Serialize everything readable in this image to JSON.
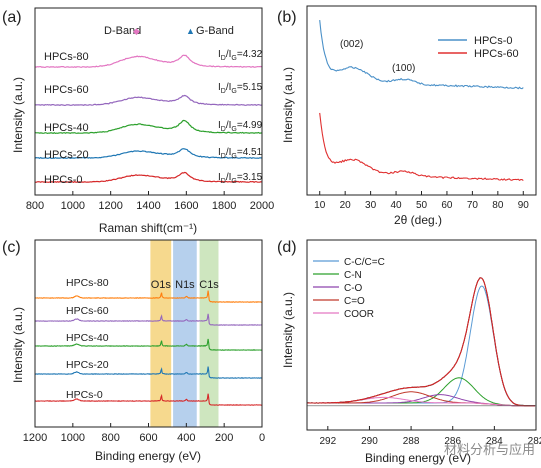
{
  "watermark": "材料分析与应用",
  "chart_data": [
    {
      "panel_label": "(a)",
      "type": "line",
      "xlabel": "Raman shift(cm⁻¹)",
      "ylabel": "Intensity (a.u.)",
      "xlim": [
        800,
        2000
      ],
      "xticks": [
        "800",
        "1000",
        "1200",
        "1400",
        "1600",
        "1800",
        "2000"
      ],
      "annotations": [
        {
          "text": "D-Band",
          "marker": "◆",
          "x": 1340
        },
        {
          "text": "G-Band",
          "marker": "▲",
          "x": 1590
        }
      ],
      "series": [
        {
          "name": "HPCs-0",
          "color": "#d62728",
          "ratio_label": "I",
          "sub": "D",
          "mid": "/I",
          "sub2": "G",
          "value": "=3.15",
          "d_height": 0.55,
          "g_height": 0.75
        },
        {
          "name": "HPCs-20",
          "color": "#1f77b4",
          "ratio_label": "I",
          "sub": "D",
          "mid": "/I",
          "sub2": "G",
          "value": "=4.51",
          "d_height": 0.55,
          "g_height": 0.75
        },
        {
          "name": "HPCs-40",
          "color": "#2ca02c",
          "ratio_label": "I",
          "sub": "D",
          "mid": "/I",
          "sub2": "G",
          "value": "=4.99",
          "d_height": 0.7,
          "g_height": 1.0
        },
        {
          "name": "HPCs-60",
          "color": "#9467bd",
          "ratio_label": "I",
          "sub": "D",
          "mid": "/I",
          "sub2": "G",
          "value": "=5.15",
          "d_height": 0.6,
          "g_height": 0.75
        },
        {
          "name": "HPCs-80",
          "color": "#e377c2",
          "ratio_label": "I",
          "sub": "D",
          "mid": "/I",
          "sub2": "G",
          "value": "=4.32",
          "d_height": 0.85,
          "g_height": 0.95
        }
      ]
    },
    {
      "panel_label": "(b)",
      "type": "line",
      "xlabel": "2θ (deg.)",
      "ylabel": "Intensity (a.u.)",
      "xlim": [
        5,
        95
      ],
      "xticks": [
        "10",
        "20",
        "30",
        "40",
        "50",
        "60",
        "70",
        "80",
        "90"
      ],
      "legend_position": "top-right",
      "annotations": [
        {
          "text": "(002)",
          "x": 23
        },
        {
          "text": "(100)",
          "x": 43
        }
      ],
      "series": [
        {
          "name": "HPCs-0",
          "color": "#4a90c8"
        },
        {
          "name": "HPCs-60",
          "color": "#e03030"
        }
      ]
    },
    {
      "panel_label": "(c)",
      "type": "line",
      "xlabel": "Binding energy (eV)",
      "ylabel": "Intensity (a.u.)",
      "xlim": [
        1200,
        0
      ],
      "xticks": [
        "1200",
        "1000",
        "800",
        "600",
        "400",
        "200",
        "0"
      ],
      "bands": [
        {
          "name": "O1s",
          "from": 590,
          "to": 480,
          "color": "#f5d27a"
        },
        {
          "name": "N1s",
          "from": 470,
          "to": 345,
          "color": "#a9c8ea"
        },
        {
          "name": "C1s",
          "from": 330,
          "to": 230,
          "color": "#c6e2b4"
        }
      ],
      "series": [
        {
          "name": "HPCs-0",
          "color": "#d62728"
        },
        {
          "name": "HPCs-20",
          "color": "#1f77b4"
        },
        {
          "name": "HPCs-40",
          "color": "#2ca02c"
        },
        {
          "name": "HPCs-60",
          "color": "#9467bd"
        },
        {
          "name": "HPCs-80",
          "color": "#ff7f0e"
        }
      ]
    },
    {
      "panel_label": "(d)",
      "type": "line",
      "xlabel": "Binding energy (eV)",
      "ylabel": "Intensity (a.u.)",
      "xlim": [
        293,
        282
      ],
      "xticks": [
        "292",
        "290",
        "288",
        "286",
        "284",
        "282"
      ],
      "legend_position": "top-left",
      "components": [
        {
          "name": "C-C/C=C",
          "color": "#5b9bd5",
          "center": 284.6,
          "width": 0.55,
          "height": 0.84
        },
        {
          "name": "C-N",
          "color": "#2ca02c",
          "center": 285.7,
          "width": 0.7,
          "height": 0.18
        },
        {
          "name": "C-O",
          "color": "#8e44ad",
          "center": 286.6,
          "width": 0.8,
          "height": 0.06
        },
        {
          "name": "C=O",
          "color": "#c0392b",
          "center": 288.0,
          "width": 0.9,
          "height": 0.08
        },
        {
          "name": "COOR",
          "color": "#e377c2",
          "center": 289.3,
          "width": 1.0,
          "height": 0.04
        }
      ],
      "envelope_color": "#d62728",
      "raw_color": "#222222"
    }
  ]
}
